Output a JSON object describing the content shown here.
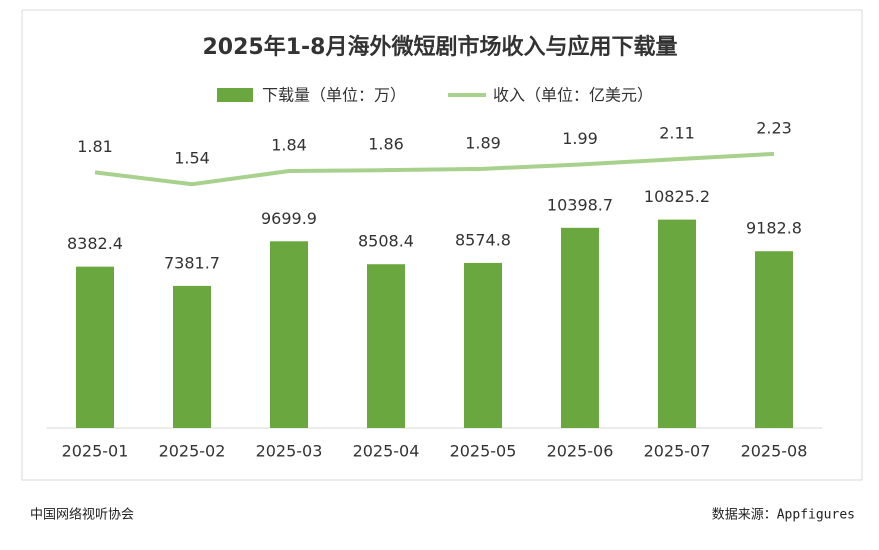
{
  "chart_data": {
    "type": "bar-line",
    "title": "2025年1-8月海外微短剧市场收入与应用下载量",
    "categories": [
      "2025-01",
      "2025-02",
      "2025-03",
      "2025-04",
      "2025-05",
      "2025-06",
      "2025-07",
      "2025-08"
    ],
    "series": [
      {
        "name": "下载量（单位：万）",
        "type": "bar",
        "color": "#6aa83f",
        "values": [
          8382.4,
          7381.7,
          9699.9,
          8508.4,
          8574.8,
          10398.7,
          10825.2,
          9182.8
        ]
      },
      {
        "name": "收入（单位：亿美元）",
        "type": "line",
        "axis": "y2",
        "color": "#a9d18e",
        "values": [
          1.81,
          1.54,
          1.84,
          1.86,
          1.89,
          1.99,
          2.11,
          2.23
        ]
      }
    ],
    "ylim": [
      0,
      16000
    ],
    "y2lim": [
      -4,
      3
    ],
    "grid": false,
    "legend": "top"
  },
  "footer": {
    "left": "中国网络视听协会",
    "right": "数据来源：Appfigures"
  }
}
